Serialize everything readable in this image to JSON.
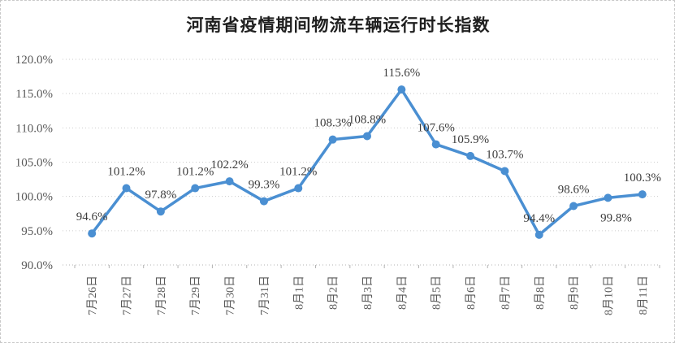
{
  "chart_data": {
    "type": "line",
    "title": "河南省疫情期间物流车辆运行时长指数",
    "categories": [
      "7月26日",
      "7月27日",
      "7月28日",
      "7月29日",
      "7月30日",
      "7月31日",
      "8月1日",
      "8月2日",
      "8月3日",
      "8月4日",
      "8月5日",
      "8月6日",
      "8月7日",
      "8月8日",
      "8月9日",
      "8月10日",
      "8月11日"
    ],
    "values": [
      94.6,
      101.2,
      97.8,
      101.2,
      102.2,
      99.3,
      101.2,
      108.3,
      108.8,
      115.6,
      107.6,
      105.9,
      103.7,
      94.4,
      98.6,
      99.8,
      100.3
    ],
    "data_labels": [
      "94.6%",
      "101.2%",
      "97.8%",
      "101.2%",
      "102.2%",
      "99.3%",
      "101.2%",
      "108.3%",
      "108.8%",
      "115.6%",
      "107.6%",
      "105.9%",
      "103.7%",
      "94.4%",
      "98.6%",
      "99.8%",
      "100.3%"
    ],
    "ylim": [
      90,
      120
    ],
    "y_tick_step": 5,
    "y_tick_labels": [
      "90.0%",
      "95.0%",
      "100.0%",
      "105.0%",
      "110.0%",
      "115.0%",
      "120.0%"
    ],
    "xlabel": "",
    "ylabel": "",
    "grid": "horizontal-dotted",
    "legend": "none",
    "label_below_indices": [
      15
    ],
    "colors": {
      "line": "#4A8FD2",
      "marker": "#4A8FD2",
      "grid": "#cdcdcd",
      "axis": "#b3b3b3",
      "axis_text": "#595959",
      "data_label_text": "#3d3d3d",
      "title_text": "#1f1f1f"
    }
  }
}
